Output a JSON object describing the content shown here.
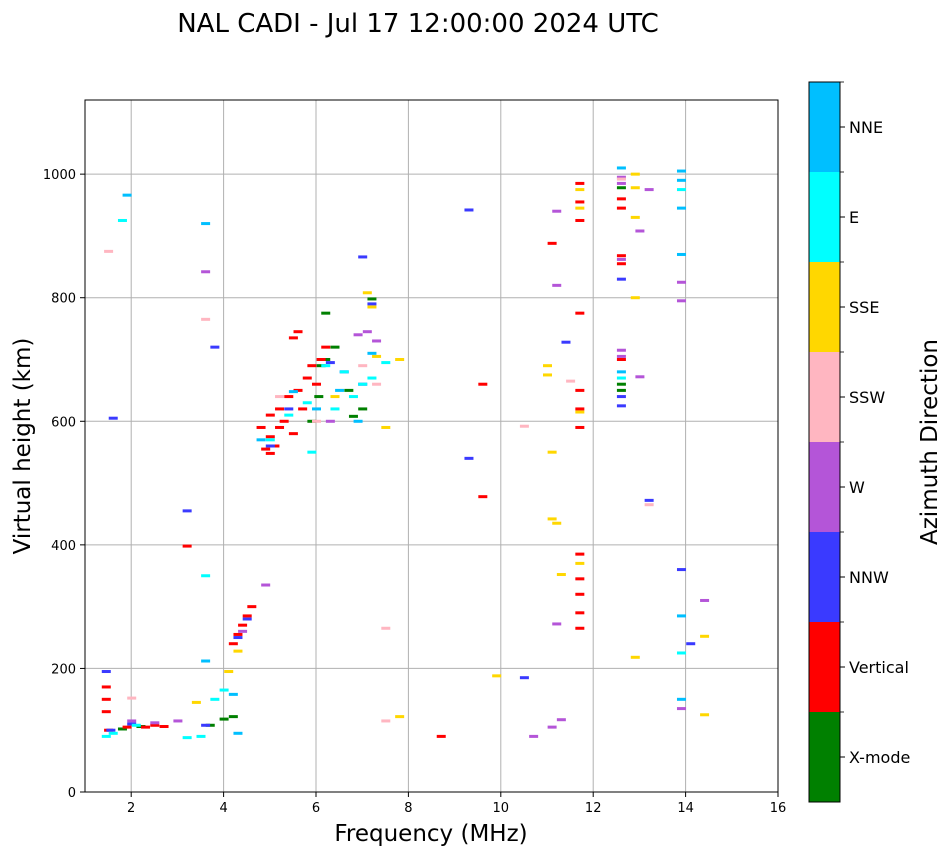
{
  "chart_data": {
    "type": "scatter",
    "title": "NAL CADI - Jul 17 12:00:00 2024 UTC",
    "xlabel": "Frequency (MHz)",
    "ylabel": "Virtual height (km)",
    "xlim": [
      1,
      16
    ],
    "ylim": [
      0,
      1120
    ],
    "xticks": [
      2,
      4,
      6,
      8,
      10,
      12,
      14,
      16
    ],
    "yticks": [
      0,
      200,
      400,
      600,
      800,
      1000
    ],
    "grid": true,
    "colorbar": {
      "label": "Azimuth Direction",
      "categories": [
        {
          "name": "X-mode",
          "color": "#008000"
        },
        {
          "name": "Vertical",
          "color": "#ff0000"
        },
        {
          "name": "NNW",
          "color": "#3a3aff"
        },
        {
          "name": "W",
          "color": "#b455d8"
        },
        {
          "name": "SSW",
          "color": "#ffb6c1"
        },
        {
          "name": "SSE",
          "color": "#ffd700"
        },
        {
          "name": "E",
          "color": "#00ffff"
        },
        {
          "name": "NNE",
          "color": "#00bfff"
        }
      ]
    },
    "series": [
      {
        "name": "X-mode",
        "points": [
          [
            1.8,
            102
          ],
          [
            2.2,
            106
          ],
          [
            3.7,
            108
          ],
          [
            4.0,
            118
          ],
          [
            4.2,
            122
          ],
          [
            6.05,
            640
          ],
          [
            6.1,
            690
          ],
          [
            6.2,
            700
          ],
          [
            6.2,
            775
          ],
          [
            6.7,
            650
          ],
          [
            6.8,
            608
          ],
          [
            7.0,
            620
          ],
          [
            7.2,
            798
          ],
          [
            6.4,
            720
          ],
          [
            5.9,
            600
          ],
          [
            12.6,
            650
          ],
          [
            12.6,
            660
          ],
          [
            12.6,
            978
          ]
        ]
      },
      {
        "name": "Vertical",
        "points": [
          [
            1.45,
            130
          ],
          [
            1.45,
            150
          ],
          [
            1.45,
            170
          ],
          [
            1.5,
            100
          ],
          [
            1.9,
            105
          ],
          [
            2.3,
            105
          ],
          [
            2.5,
            108
          ],
          [
            2.7,
            106
          ],
          [
            3.2,
            398
          ],
          [
            4.2,
            240
          ],
          [
            4.3,
            255
          ],
          [
            4.4,
            270
          ],
          [
            4.5,
            285
          ],
          [
            4.6,
            300
          ],
          [
            4.9,
            555
          ],
          [
            5.0,
            548
          ],
          [
            5.0,
            575
          ],
          [
            5.1,
            560
          ],
          [
            5.2,
            590
          ],
          [
            5.2,
            620
          ],
          [
            5.3,
            600
          ],
          [
            5.4,
            640
          ],
          [
            5.5,
            580
          ],
          [
            5.6,
            650
          ],
          [
            5.7,
            620
          ],
          [
            5.8,
            670
          ],
          [
            5.9,
            690
          ],
          [
            6.0,
            660
          ],
          [
            6.1,
            700
          ],
          [
            5.5,
            735
          ],
          [
            5.6,
            745
          ],
          [
            6.2,
            720
          ],
          [
            4.8,
            590
          ],
          [
            5.0,
            610
          ],
          [
            9.6,
            660
          ],
          [
            9.6,
            478
          ],
          [
            8.7,
            90
          ],
          [
            11.1,
            888
          ],
          [
            11.7,
            985
          ],
          [
            11.7,
            955
          ],
          [
            11.7,
            925
          ],
          [
            11.7,
            775
          ],
          [
            11.7,
            650
          ],
          [
            11.7,
            620
          ],
          [
            11.7,
            590
          ],
          [
            11.7,
            385
          ],
          [
            11.7,
            345
          ],
          [
            11.7,
            320
          ],
          [
            11.7,
            290
          ],
          [
            11.7,
            265
          ],
          [
            12.6,
            945
          ],
          [
            12.6,
            960
          ],
          [
            12.6,
            855
          ],
          [
            12.6,
            868
          ],
          [
            12.6,
            700
          ]
        ]
      },
      {
        "name": "NNW",
        "points": [
          [
            1.45,
            195
          ],
          [
            1.6,
            605
          ],
          [
            1.55,
            100
          ],
          [
            2.0,
            110
          ],
          [
            3.2,
            455
          ],
          [
            3.6,
            108
          ],
          [
            3.8,
            720
          ],
          [
            4.3,
            250
          ],
          [
            4.5,
            280
          ],
          [
            5.0,
            560
          ],
          [
            5.4,
            620
          ],
          [
            6.3,
            695
          ],
          [
            6.6,
            680
          ],
          [
            7.0,
            660
          ],
          [
            7.0,
            866
          ],
          [
            7.2,
            790
          ],
          [
            9.3,
            942
          ],
          [
            9.3,
            540
          ],
          [
            10.5,
            185
          ],
          [
            11.4,
            728
          ],
          [
            12.6,
            625
          ],
          [
            12.6,
            640
          ],
          [
            12.6,
            830
          ],
          [
            13.2,
            472
          ],
          [
            13.9,
            360
          ],
          [
            14.1,
            240
          ]
        ]
      },
      {
        "name": "W",
        "points": [
          [
            2.0,
            115
          ],
          [
            2.5,
            112
          ],
          [
            3.0,
            115
          ],
          [
            3.6,
            842
          ],
          [
            4.4,
            260
          ],
          [
            4.9,
            335
          ],
          [
            6.3,
            600
          ],
          [
            6.9,
            740
          ],
          [
            7.1,
            745
          ],
          [
            7.3,
            730
          ],
          [
            10.7,
            90
          ],
          [
            11.2,
            940
          ],
          [
            11.2,
            820
          ],
          [
            11.2,
            272
          ],
          [
            11.3,
            117
          ],
          [
            11.1,
            105
          ],
          [
            12.6,
            985
          ],
          [
            12.6,
            995
          ],
          [
            12.6,
            862
          ],
          [
            12.6,
            715
          ],
          [
            12.6,
            705
          ],
          [
            13.0,
            908
          ],
          [
            13.0,
            672
          ],
          [
            13.2,
            975
          ],
          [
            13.9,
            825
          ],
          [
            13.9,
            795
          ],
          [
            13.9,
            135
          ],
          [
            14.4,
            310
          ]
        ]
      },
      {
        "name": "SSW",
        "points": [
          [
            1.5,
            875
          ],
          [
            2.0,
            152
          ],
          [
            3.6,
            765
          ],
          [
            5.2,
            640
          ],
          [
            6.0,
            600
          ],
          [
            7.0,
            690
          ],
          [
            7.3,
            660
          ],
          [
            7.5,
            265
          ],
          [
            7.5,
            115
          ],
          [
            10.5,
            592
          ],
          [
            11.5,
            665
          ],
          [
            12.6,
            992
          ],
          [
            13.2,
            465
          ]
        ]
      },
      {
        "name": "SSE",
        "points": [
          [
            3.4,
            145
          ],
          [
            4.1,
            195
          ],
          [
            4.3,
            228
          ],
          [
            6.4,
            640
          ],
          [
            7.1,
            808
          ],
          [
            7.2,
            785
          ],
          [
            7.3,
            705
          ],
          [
            7.5,
            590
          ],
          [
            7.8,
            700
          ],
          [
            7.8,
            122
          ],
          [
            9.9,
            188
          ],
          [
            11.0,
            690
          ],
          [
            11.0,
            675
          ],
          [
            11.1,
            550
          ],
          [
            11.1,
            442
          ],
          [
            11.2,
            435
          ],
          [
            11.3,
            352
          ],
          [
            11.7,
            975
          ],
          [
            11.7,
            945
          ],
          [
            11.7,
            370
          ],
          [
            11.7,
            615
          ],
          [
            12.9,
            1000
          ],
          [
            12.9,
            978
          ],
          [
            12.9,
            930
          ],
          [
            12.9,
            800
          ],
          [
            12.9,
            218
          ],
          [
            14.4,
            252
          ],
          [
            14.4,
            125
          ]
        ]
      },
      {
        "name": "E",
        "points": [
          [
            1.45,
            90
          ],
          [
            1.6,
            95
          ],
          [
            1.8,
            925
          ],
          [
            2.1,
            108
          ],
          [
            3.2,
            88
          ],
          [
            3.5,
            90
          ],
          [
            3.6,
            350
          ],
          [
            3.8,
            150
          ],
          [
            4.0,
            165
          ],
          [
            5.0,
            570
          ],
          [
            5.4,
            610
          ],
          [
            5.8,
            630
          ],
          [
            5.9,
            550
          ],
          [
            6.2,
            690
          ],
          [
            6.4,
            620
          ],
          [
            6.6,
            680
          ],
          [
            6.8,
            640
          ],
          [
            7.0,
            660
          ],
          [
            7.2,
            670
          ],
          [
            7.5,
            695
          ],
          [
            12.6,
            670
          ],
          [
            13.9,
            225
          ],
          [
            13.9,
            975
          ]
        ]
      },
      {
        "name": "NNE",
        "points": [
          [
            1.9,
            966
          ],
          [
            3.6,
            920
          ],
          [
            3.6,
            212
          ],
          [
            4.3,
            95
          ],
          [
            4.2,
            158
          ],
          [
            4.8,
            570
          ],
          [
            5.5,
            648
          ],
          [
            6.0,
            620
          ],
          [
            6.5,
            650
          ],
          [
            6.9,
            600
          ],
          [
            7.2,
            710
          ],
          [
            12.6,
            1010
          ],
          [
            12.6,
            680
          ],
          [
            13.9,
            1005
          ],
          [
            13.9,
            990
          ],
          [
            13.9,
            945
          ],
          [
            13.9,
            870
          ],
          [
            13.9,
            285
          ],
          [
            13.9,
            150
          ]
        ]
      }
    ]
  }
}
